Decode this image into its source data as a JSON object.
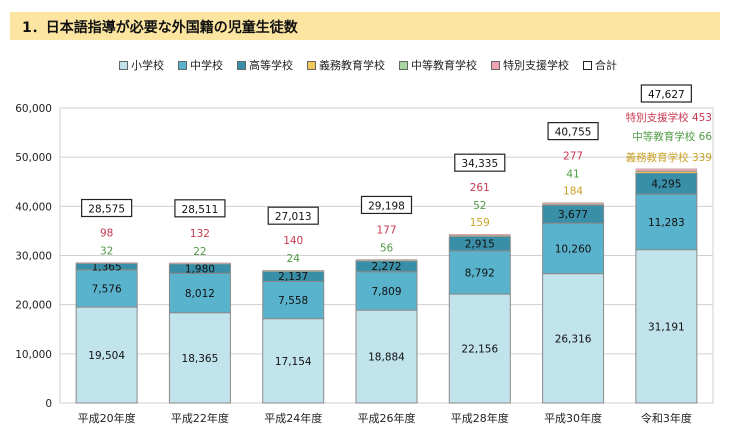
{
  "title": "1．日本語指導が必要な外国籍の児童生徒数",
  "chart_data": {
    "type": "bar",
    "stacked": true,
    "title": "日本語指導が必要な外国籍の児童生徒数",
    "xlabel": "",
    "ylabel": "",
    "ylim": [
      0,
      60000
    ],
    "yticks": [
      0,
      10000,
      20000,
      30000,
      40000,
      50000,
      60000
    ],
    "ytick_labels": [
      "0",
      "10,000",
      "20,000",
      "30,000",
      "40,000",
      "50,000",
      "60,000"
    ],
    "grid": true,
    "legend_position": "top",
    "categories": [
      "平成20年度",
      "平成22年度",
      "平成24年度",
      "平成26年度",
      "平成28年度",
      "平成30年度",
      "令和3年度"
    ],
    "series": [
      {
        "name": "小学校",
        "color": "#c1e3ec",
        "values": [
          19504,
          18365,
          17154,
          18884,
          22156,
          26316,
          31191
        ],
        "labels": [
          "19,504",
          "18,365",
          "17,154",
          "18,884",
          "22,156",
          "26,316",
          "31,191"
        ]
      },
      {
        "name": "中学校",
        "color": "#5ab3cd",
        "values": [
          7576,
          8012,
          7558,
          7809,
          8792,
          10260,
          11283
        ],
        "labels": [
          "7,576",
          "8,012",
          "7,558",
          "7,809",
          "8,792",
          "10,260",
          "11,283"
        ]
      },
      {
        "name": "高等学校",
        "color": "#3a8fa8",
        "values": [
          1365,
          1980,
          2137,
          2272,
          2915,
          3677,
          4295
        ],
        "labels": [
          "1,365",
          "1,980",
          "2,137",
          "2,272",
          "2,915",
          "3,677",
          "4,295"
        ]
      },
      {
        "name": "義務教育学校",
        "color": "#f2c85b",
        "label_color": "#c9a227",
        "values": [
          null,
          null,
          null,
          null,
          159,
          184,
          339
        ],
        "labels": [
          null,
          null,
          null,
          null,
          "159",
          "184",
          "339"
        ]
      },
      {
        "name": "中等教育学校",
        "color": "#a7d6a0",
        "label_color": "#4f9a45",
        "values": [
          32,
          22,
          24,
          56,
          52,
          41,
          66
        ],
        "labels": [
          "32",
          "22",
          "24",
          "56",
          "52",
          "41",
          "66"
        ]
      },
      {
        "name": "特別支援学校",
        "color": "#eea3b0",
        "label_color": "#c8384f",
        "values": [
          98,
          132,
          140,
          177,
          261,
          277,
          453
        ],
        "labels": [
          "98",
          "132",
          "140",
          "177",
          "261",
          "277",
          "453"
        ]
      }
    ],
    "totals_name": "合計",
    "totals": [
      28575,
      28511,
      27013,
      29198,
      34335,
      40755,
      47627
    ],
    "total_labels": [
      "28,575",
      "28,511",
      "27,013",
      "29,198",
      "34,335",
      "40,755",
      "47,627"
    ],
    "last_bar_annotations": [
      {
        "text": "特別支援学校 453",
        "color": "#c8384f"
      },
      {
        "text": "中等教育学校 66",
        "color": "#4f9a45"
      },
      {
        "text": "義務教育学校 339",
        "color": "#c9a227"
      }
    ]
  }
}
